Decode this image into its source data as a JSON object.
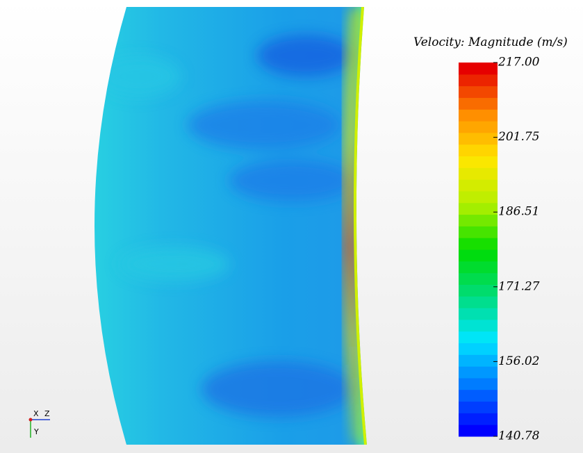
{
  "legend": {
    "title": "Velocity: Magnitude (m/s)",
    "ticks": [
      {
        "value": 217.0,
        "label": "217.00"
      },
      {
        "value": 201.75,
        "label": "201.75"
      },
      {
        "value": 186.51,
        "label": "186.51"
      },
      {
        "value": 171.27,
        "label": "171.27"
      },
      {
        "value": 156.02,
        "label": "156.02"
      },
      {
        "value": 140.78,
        "label": "140.78"
      }
    ]
  },
  "triad": {
    "x": "X",
    "z": "Z",
    "y": "Y"
  }
}
